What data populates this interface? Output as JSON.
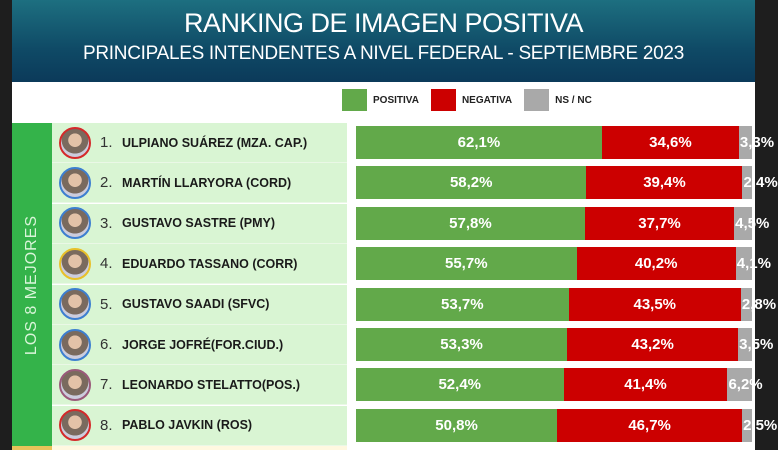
{
  "header": {
    "title": "RANKING DE IMAGEN POSITIVA",
    "subtitle": "PRINCIPALES INTENDENTES A NIVEL FEDERAL - SEPTIEMBRE 2023"
  },
  "side_label": "LOS 8 MEJORES",
  "colors": {
    "positiva": "#62a94a",
    "negativa": "#cc0000",
    "nsnc": "#a9a9a9"
  },
  "chart_data": {
    "type": "bar",
    "stacked": true,
    "orientation": "horizontal",
    "legend": [
      "POSITIVA",
      "NEGATIVA",
      "NS / NC"
    ],
    "legend_position": "top",
    "xlim": [
      0,
      100
    ],
    "categories": [
      "ULPIANO SUÁREZ (MZA. CAP.)",
      "MARTÍN LLARYORA (CORD)",
      "GUSTAVO SASTRE (PMY)",
      "EDUARDO TASSANO (CORR)",
      "GUSTAVO SAADI (SFVC)",
      "JORGE JOFRÉ(FOR.CIUD.)",
      "LEONARDO STELATTO(POS.)",
      "PABLO JAVKIN (ROS)"
    ],
    "ranks": [
      "1.",
      "2.",
      "3.",
      "4.",
      "5.",
      "6.",
      "7.",
      "8."
    ],
    "avatar_border_colors": [
      "#d42a2a",
      "#3d7fd0",
      "#3d7fd0",
      "#e8c02a",
      "#3d7fd0",
      "#3d7fd0",
      "#9a5a7a",
      "#d42a2a"
    ],
    "series": [
      {
        "name": "POSITIVA",
        "values": [
          62.1,
          58.2,
          57.8,
          55.7,
          53.7,
          53.3,
          52.4,
          50.8
        ],
        "labels": [
          "62,1%",
          "58,2%",
          "57,8%",
          "55,7%",
          "53,7%",
          "53,3%",
          "52,4%",
          "50,8%"
        ]
      },
      {
        "name": "NEGATIVA",
        "values": [
          34.6,
          39.4,
          37.7,
          40.2,
          43.5,
          43.2,
          41.4,
          46.7
        ],
        "labels": [
          "34,6%",
          "39,4%",
          "37,7%",
          "40,2%",
          "43,5%",
          "43,2%",
          "41,4%",
          "46,7%"
        ]
      },
      {
        "name": "NS / NC",
        "values": [
          3.3,
          2.4,
          4.5,
          4.1,
          2.8,
          3.5,
          6.2,
          2.5
        ],
        "labels": [
          "3,3%",
          "2,4%",
          "4,5%",
          "4,1%",
          "2,8%",
          "3,5%",
          "6,2%",
          "2,5%"
        ]
      }
    ]
  }
}
